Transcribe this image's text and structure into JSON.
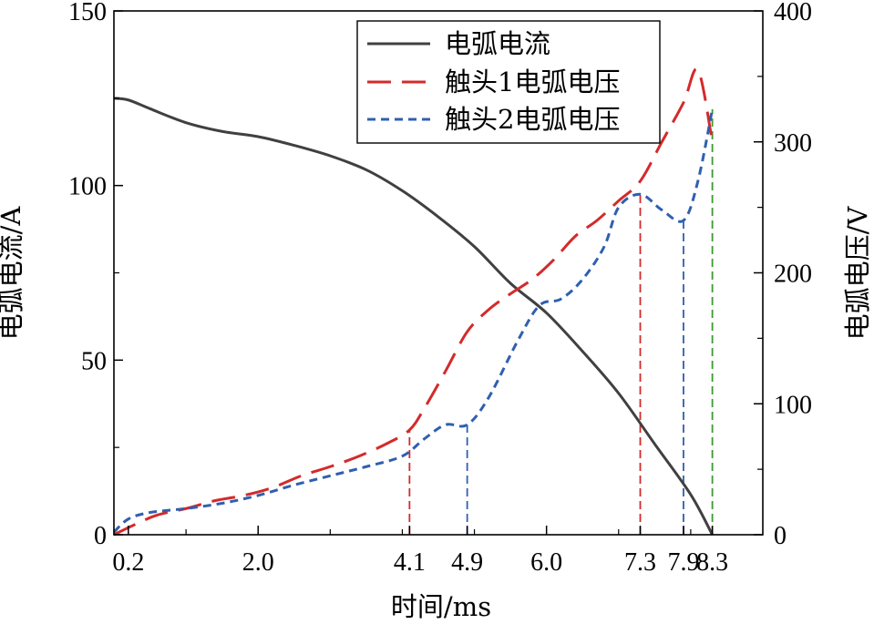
{
  "chart_data": {
    "type": "line",
    "xlabel": "时间/ms",
    "ylabel_left": "电弧电流/A",
    "ylabel_right": "电弧电压/V",
    "xlim": [
      0,
      9.0
    ],
    "ylim_left": [
      0,
      150
    ],
    "ylim_right": [
      0,
      400
    ],
    "grid": false,
    "legend_position": "top-center",
    "x_ticks": [
      {
        "value": 0.2,
        "label": "0.2",
        "color": "#3a9a2e"
      },
      {
        "value": 2.0,
        "label": "2.0",
        "color": "#000000"
      },
      {
        "value": 4.1,
        "label": "4.1",
        "color": "#d42a2a"
      },
      {
        "value": 4.9,
        "label": "4.9",
        "color": "#2f5fb0"
      },
      {
        "value": 6.0,
        "label": "6.0",
        "color": "#000000"
      },
      {
        "value": 7.3,
        "label": "7.3",
        "color": "#d42a2a"
      },
      {
        "value": 7.9,
        "label": "7.9",
        "color": "#2f5fb0"
      },
      {
        "value": 8.3,
        "label": "8.3",
        "color": "#3a9a2e"
      }
    ],
    "minor_x_ticks": [
      0,
      1,
      3,
      4,
      5,
      7,
      8
    ],
    "y_left_ticks": [
      {
        "value": 0,
        "label": "0"
      },
      {
        "value": 50,
        "label": "50"
      },
      {
        "value": 100,
        "label": "100"
      },
      {
        "value": 150,
        "label": "150"
      }
    ],
    "y_right_ticks": [
      {
        "value": 0,
        "label": "0"
      },
      {
        "value": 100,
        "label": "100"
      },
      {
        "value": 200,
        "label": "200"
      },
      {
        "value": 300,
        "label": "300"
      },
      {
        "value": 400,
        "label": "400"
      }
    ],
    "series": [
      {
        "name": "电弧电流",
        "axis": "left",
        "color": "#404040",
        "style": "solid",
        "x": [
          0.0,
          0.2,
          0.5,
          1.0,
          1.5,
          2.0,
          2.5,
          3.0,
          3.5,
          4.0,
          4.5,
          5.0,
          5.5,
          6.0,
          6.5,
          7.0,
          7.5,
          8.0,
          8.3
        ],
        "y": [
          125,
          124.5,
          122,
          118,
          115.5,
          114,
          111.5,
          108.5,
          104.5,
          98.5,
          91,
          82.5,
          72,
          63.5,
          52.5,
          40.5,
          26,
          11.5,
          0
        ]
      },
      {
        "name": "触头1电弧电压",
        "axis": "right",
        "color": "#d42a2a",
        "style": "longdash",
        "x": [
          0.0,
          0.3,
          0.6,
          1.0,
          1.4,
          1.8,
          2.2,
          2.6,
          3.0,
          3.4,
          3.8,
          4.1,
          4.3,
          4.6,
          4.9,
          5.2,
          5.5,
          5.8,
          6.1,
          6.4,
          6.7,
          7.0,
          7.3,
          7.6,
          7.9,
          8.1,
          8.3
        ],
        "y": [
          0,
          8,
          15,
          20,
          26,
          30,
          36,
          45,
          52,
          60,
          70,
          80,
          96,
          125,
          155,
          172,
          184,
          195,
          210,
          228,
          240,
          255,
          270,
          300,
          330,
          355,
          300
        ]
      },
      {
        "name": "触头2电弧电压",
        "axis": "right",
        "color": "#2f5fb0",
        "style": "shortdash",
        "x": [
          0.0,
          0.2,
          0.5,
          1.0,
          1.5,
          2.0,
          2.5,
          3.0,
          3.5,
          4.0,
          4.3,
          4.6,
          4.9,
          5.2,
          5.6,
          5.9,
          6.2,
          6.5,
          6.8,
          7.0,
          7.3,
          7.6,
          7.9,
          8.1,
          8.3
        ],
        "y": [
          2,
          12,
          17,
          20,
          24,
          30,
          38,
          45,
          52,
          60,
          73,
          84,
          84,
          105,
          148,
          175,
          180,
          195,
          220,
          250,
          260,
          248,
          240,
          270,
          325
        ]
      }
    ],
    "markers": [
      {
        "x": 4.1,
        "top_right": 80,
        "color": "#d42a2a"
      },
      {
        "x": 4.9,
        "top_right": 84,
        "color": "#2f5fb0"
      },
      {
        "x": 7.3,
        "top_right": 260,
        "color": "#d42a2a"
      },
      {
        "x": 7.9,
        "top_right": 240,
        "color": "#2f5fb0"
      },
      {
        "x": 8.3,
        "top_right": 325,
        "color": "#3a9a2e"
      }
    ]
  }
}
